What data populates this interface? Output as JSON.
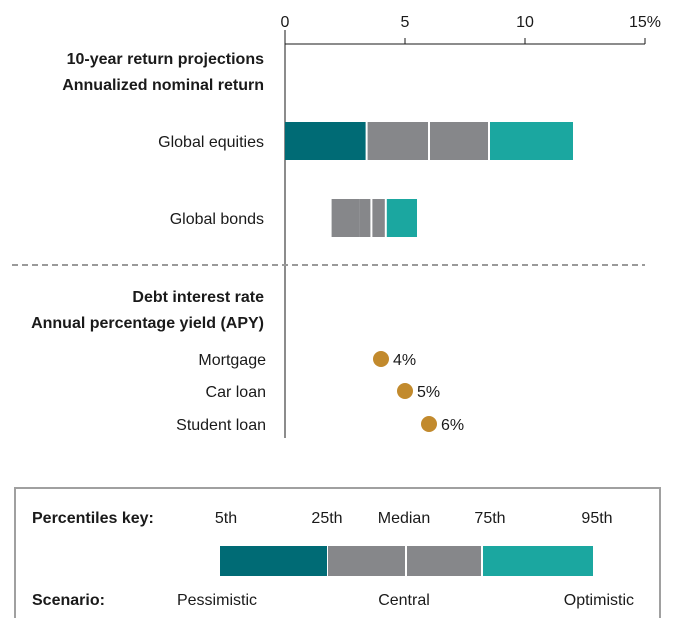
{
  "chart_data": {
    "type": "bar",
    "xlim": [
      0,
      15
    ],
    "ticks": [
      {
        "value": 0,
        "label": "0"
      },
      {
        "value": 5,
        "label": "5"
      },
      {
        "value": 10,
        "label": "10"
      },
      {
        "value": 15,
        "label": "15%"
      }
    ],
    "section_returns": {
      "title": "10-year return projections",
      "subtitle": "Annualized nominal return",
      "rows": [
        {
          "label": "Global equities",
          "p5": 3.4,
          "p25": 6.0,
          "median": 6.0,
          "p75": 8.5,
          "p95": 12.0
        },
        {
          "label": "Global bonds",
          "p5": 1.9,
          "p25": 3.1,
          "median": 3.6,
          "p75": 4.2,
          "p95": 5.5
        }
      ]
    },
    "section_debt": {
      "title": "Debt interest rate",
      "subtitle": "Annual percentage yield (APY)",
      "points": [
        {
          "label": "Mortgage",
          "value": 4,
          "value_label": "4%"
        },
        {
          "label": "Car loan",
          "value": 5,
          "value_label": "5%"
        },
        {
          "label": "Student loan",
          "value": 6,
          "value_label": "6%"
        }
      ]
    },
    "colors": {
      "pessimistic": "#006b75",
      "central": "#86878a",
      "optimistic": "#1ba7a0",
      "dot": "#c28a2d",
      "divider": "#9a9a9a",
      "axis": "#1a1a1a"
    }
  },
  "key": {
    "percentiles_label": "Percentiles key:",
    "percentiles": [
      "5th",
      "25th",
      "Median",
      "75th",
      "95th"
    ],
    "scenario_label": "Scenario:",
    "scenarios": [
      "Pessimistic",
      "Central",
      "Optimistic"
    ]
  }
}
